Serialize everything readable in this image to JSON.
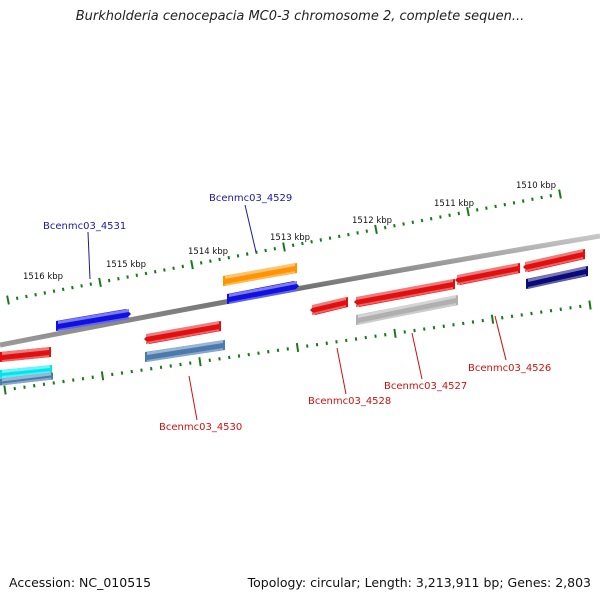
{
  "title": "Burkholderia cenocepacia MC0-3 chromosome 2, complete sequen...",
  "footer": {
    "accession": "Accession: NC_010515",
    "summary": "Topology: circular; Length: 3,213,911 bp; Genes: 2,803"
  },
  "colors": {
    "backbone": "#7a7a7a",
    "tick": "#1a7a1a",
    "label_forward": "#1a1aa0",
    "label_reverse": "#cc1111"
  },
  "scale": {
    "labels": [
      {
        "text": "1516 kbp",
        "pos": 1516
      },
      {
        "text": "1515 kbp",
        "pos": 1515
      },
      {
        "text": "1514 kbp",
        "pos": 1514
      },
      {
        "text": "1513 kbp",
        "pos": 1513
      },
      {
        "text": "1512 kbp",
        "pos": 1512
      },
      {
        "text": "1511 kbp",
        "pos": 1511
      },
      {
        "text": "1510 kbp",
        "pos": 1510
      }
    ]
  },
  "gene_labels": [
    {
      "id": "g4531",
      "text": "Bcenmc03_4531",
      "strand": "forward"
    },
    {
      "id": "g4529",
      "text": "Bcenmc03_4529",
      "strand": "forward"
    },
    {
      "id": "g4530",
      "text": "Bcenmc03_4530",
      "strand": "reverse"
    },
    {
      "id": "g4528",
      "text": "Bcenmc03_4528",
      "strand": "reverse"
    },
    {
      "id": "g4527",
      "text": "Bcenmc03_4527",
      "strand": "reverse"
    },
    {
      "id": "g4526",
      "text": "Bcenmc03_4526",
      "strand": "reverse"
    }
  ],
  "features": [
    {
      "id": "f4531",
      "color": "#1010e0",
      "dir": 1
    },
    {
      "id": "f4529a",
      "color": "#ff9400",
      "dir": 0
    },
    {
      "id": "f4529b",
      "color": "#1010e0",
      "dir": 1
    },
    {
      "id": "f4530a",
      "color": "#e01010",
      "dir": -1
    },
    {
      "id": "f4530b",
      "color": "#4a7aae",
      "dir": 0
    },
    {
      "id": "f4528",
      "color": "#e01010",
      "dir": -1
    },
    {
      "id": "f4527a",
      "color": "#e01010",
      "dir": -1
    },
    {
      "id": "f4527b",
      "color": "#b0b0b0",
      "dir": 0
    },
    {
      "id": "f4526",
      "color": "#e01010",
      "dir": -1
    },
    {
      "id": "f4526b",
      "color": "#e01010",
      "dir": -1
    },
    {
      "id": "f4525",
      "color": "#0a0a7a",
      "dir": 0
    },
    {
      "id": "fL1",
      "color": "#e01010",
      "dir": 0
    },
    {
      "id": "fL2",
      "color": "#00e5ee",
      "dir": 0
    },
    {
      "id": "fL3",
      "color": "#4a7aae",
      "dir": 0
    }
  ]
}
